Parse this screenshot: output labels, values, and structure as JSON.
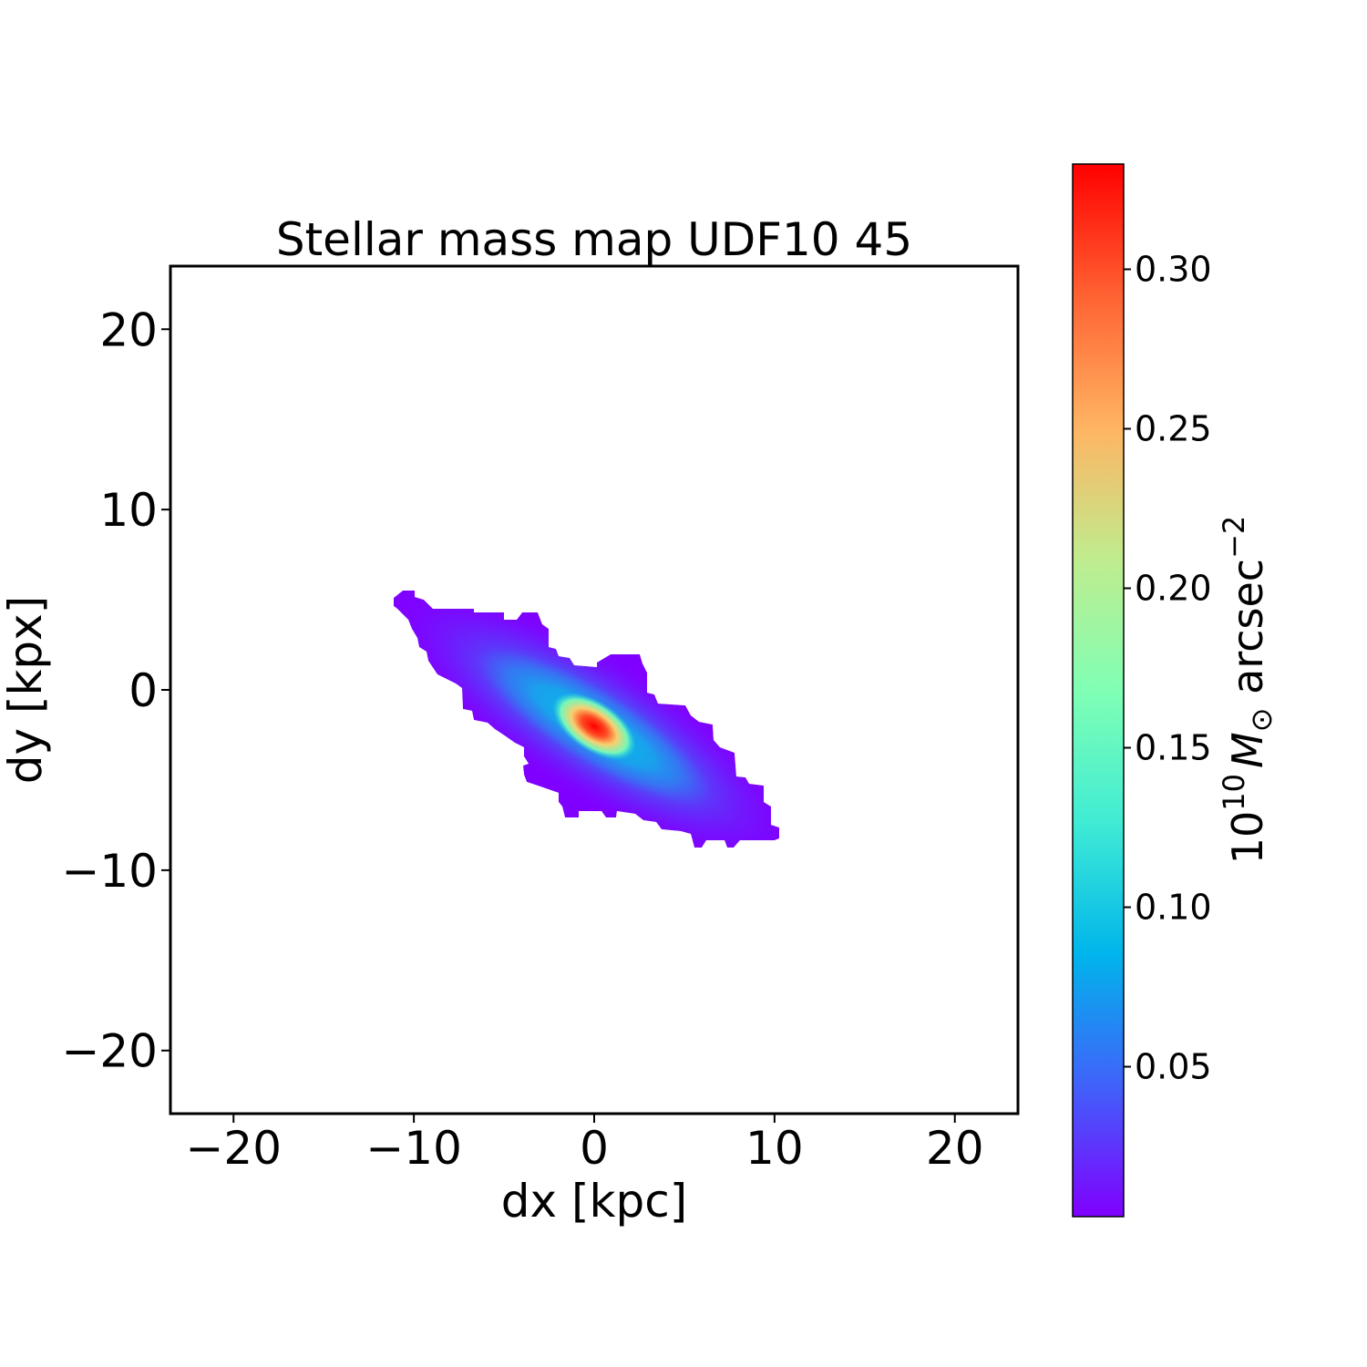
{
  "chart_data": {
    "type": "heatmap",
    "title": "Stellar mass map UDF10 45",
    "xlabel": "dx [kpc]",
    "ylabel": "dy [kpx]",
    "xlim": [
      -23.5,
      23.5
    ],
    "ylim": [
      -23.5,
      23.5
    ],
    "xticks": [
      -20,
      -10,
      0,
      10,
      20
    ],
    "yticks": [
      -20,
      -10,
      0,
      10,
      20
    ],
    "xtick_labels": [
      "−20",
      "−10",
      "0",
      "10",
      "20"
    ],
    "ytick_labels": [
      "−20",
      "−10",
      "0",
      "10",
      "20"
    ],
    "grid": false,
    "colormap": "rainbow",
    "colorbar": {
      "label_base": "10",
      "label_exp": "10",
      "label_sym": "M",
      "label_sub": "⊙",
      "label_unit": " arcsec",
      "label_unit_exp": "−2",
      "vmin": 0.003,
      "vmax": 0.333,
      "ticks": [
        0.05,
        0.1,
        0.15,
        0.2,
        0.25,
        0.3
      ],
      "tick_labels": [
        "0.05",
        "0.10",
        "0.15",
        "0.20",
        "0.25",
        "0.30"
      ]
    },
    "map": {
      "peak_value": 0.333,
      "peak_position": [
        0,
        -2
      ],
      "extent_x": [
        -11,
        10.3
      ],
      "extent_y": [
        -8.8,
        5.4
      ],
      "major_axis_orientation_deg": -32,
      "background_value": 0.003
    }
  }
}
